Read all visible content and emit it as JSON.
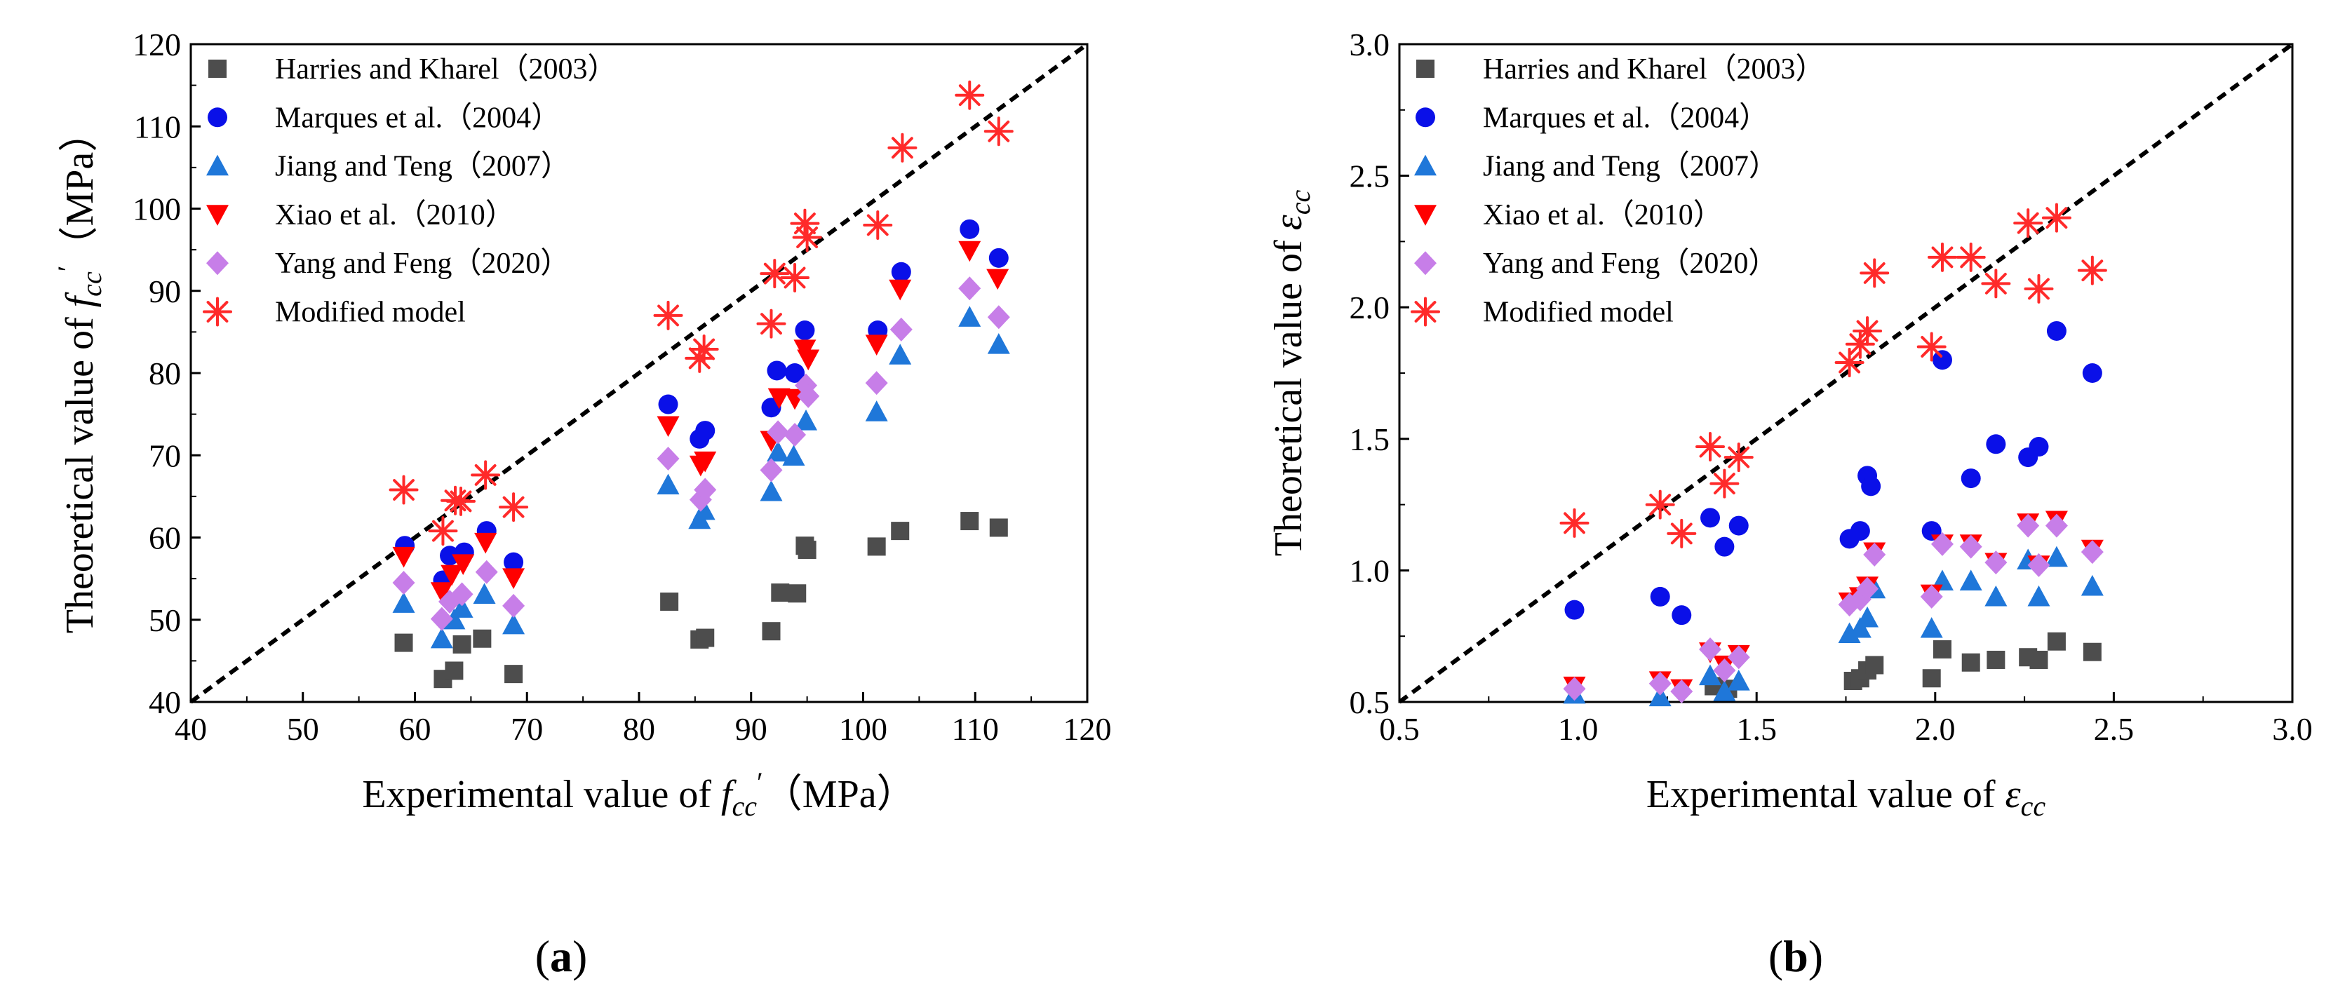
{
  "colors": {
    "harries": "#4d4d4d",
    "marques": "#0a10e8",
    "jiang": "#1f77d9",
    "xiao": "#ff0000",
    "yang": "#c77ee8",
    "modified": "#ff2a2a",
    "axis": "#000000"
  },
  "chart_data": [
    {
      "type": "scatter",
      "panel_label": "(a)",
      "xlabel": {
        "prefix": "Experimental value of ",
        "sym": "f",
        "sub": "cc",
        "prime": "′",
        "unit": "（MPa）"
      },
      "ylabel": {
        "prefix": "Theoretical value of ",
        "sym": "f",
        "sub": "cc",
        "prime": "′",
        "unit": "（MPa）"
      },
      "xlim": [
        40,
        120
      ],
      "ylim": [
        40,
        120
      ],
      "xticks": [
        "40",
        "50",
        "60",
        "70",
        "80",
        "90",
        "100",
        "110",
        "120"
      ],
      "yticks": [
        "40",
        "50",
        "60",
        "70",
        "80",
        "90",
        "100",
        "110",
        "120"
      ],
      "reference_line": "y = x",
      "legend_position": "top-left",
      "series": [
        {
          "name": "Harries and Kharel（2003）",
          "marker": "square",
          "color": "harries",
          "points": [
            [
              59,
              47.2
            ],
            [
              62.5,
              42.8
            ],
            [
              63.5,
              43.8
            ],
            [
              64.2,
              47
            ],
            [
              66,
              47.7
            ],
            [
              68.8,
              43.4
            ],
            [
              82.7,
              52.2
            ],
            [
              85.4,
              47.6
            ],
            [
              85.9,
              47.8
            ],
            [
              91.8,
              48.6
            ],
            [
              92.6,
              53.3
            ],
            [
              94.1,
              53.2
            ],
            [
              94.8,
              59
            ],
            [
              95,
              58.5
            ],
            [
              101.2,
              58.9
            ],
            [
              103.3,
              60.8
            ],
            [
              109.5,
              62
            ],
            [
              112.1,
              61.2
            ]
          ]
        },
        {
          "name": "Marques et al.（2004）",
          "marker": "circle",
          "color": "marques",
          "points": [
            [
              59.1,
              59
            ],
            [
              62.5,
              54.8
            ],
            [
              63.1,
              57.8
            ],
            [
              64.4,
              58.2
            ],
            [
              66.4,
              60.8
            ],
            [
              68.8,
              57
            ],
            [
              82.6,
              76.2
            ],
            [
              85.4,
              72
            ],
            [
              85.9,
              73
            ],
            [
              91.8,
              75.8
            ],
            [
              92.3,
              80.3
            ],
            [
              93.9,
              80
            ],
            [
              94.8,
              85.2
            ],
            [
              101.3,
              85.2
            ],
            [
              103.4,
              92.3
            ],
            [
              109.5,
              97.5
            ],
            [
              112.1,
              94
            ]
          ]
        },
        {
          "name": "Jiang and Teng（2007）",
          "marker": "triangle-up",
          "color": "jiang",
          "points": [
            [
              59,
              52
            ],
            [
              62.4,
              47.7
            ],
            [
              63.5,
              50
            ],
            [
              64.2,
              51.4
            ],
            [
              66.2,
              53.1
            ],
            [
              68.8,
              49.4
            ],
            [
              82.6,
              66.4
            ],
            [
              85.4,
              62.2
            ],
            [
              85.8,
              63.3
            ],
            [
              91.8,
              65.6
            ],
            [
              92.4,
              70.4
            ],
            [
              93.8,
              69.9
            ],
            [
              94.9,
              74.2
            ],
            [
              101.2,
              75.3
            ],
            [
              103.3,
              82.2
            ],
            [
              109.5,
              86.8
            ],
            [
              112.1,
              83.5
            ]
          ]
        },
        {
          "name": "Xiao et al.（2010）",
          "marker": "triangle-down",
          "color": "xiao",
          "points": [
            [
              59,
              57.7
            ],
            [
              62.4,
              53.4
            ],
            [
              63.3,
              55.5
            ],
            [
              64.3,
              56.8
            ],
            [
              66.3,
              59.4
            ],
            [
              68.8,
              55.1
            ],
            [
              82.6,
              73.6
            ],
            [
              85.5,
              68.8
            ],
            [
              85.9,
              69.3
            ],
            [
              91.8,
              71.8
            ],
            [
              92.5,
              77
            ],
            [
              93.9,
              76.9
            ],
            [
              94.8,
              82.9
            ],
            [
              95.1,
              81.7
            ],
            [
              101.2,
              83.5
            ],
            [
              103.3,
              90.2
            ],
            [
              109.5,
              94.9
            ],
            [
              112,
              91.5
            ]
          ]
        },
        {
          "name": "Yang and Feng（2020）",
          "marker": "diamond",
          "color": "yang",
          "points": [
            [
              59,
              54.5
            ],
            [
              62.4,
              50.1
            ],
            [
              63.1,
              52.2
            ],
            [
              64.2,
              53.1
            ],
            [
              66.4,
              55.8
            ],
            [
              68.8,
              51.7
            ],
            [
              82.6,
              69.6
            ],
            [
              85.5,
              64.6
            ],
            [
              85.9,
              65.8
            ],
            [
              91.8,
              68.2
            ],
            [
              92.4,
              72.8
            ],
            [
              93.9,
              72.5
            ],
            [
              94.9,
              78.5
            ],
            [
              95.1,
              77.2
            ],
            [
              101.2,
              78.8
            ],
            [
              103.4,
              85.3
            ],
            [
              109.5,
              90.3
            ],
            [
              112.1,
              86.8
            ]
          ]
        },
        {
          "name": "Modified model",
          "marker": "asterisk",
          "color": "modified",
          "points": [
            [
              59,
              65.8
            ],
            [
              62.5,
              60.8
            ],
            [
              63.6,
              64.5
            ],
            [
              64.1,
              64.4
            ],
            [
              66.3,
              67.6
            ],
            [
              68.8,
              63.7
            ],
            [
              82.6,
              87
            ],
            [
              85.4,
              81.8
            ],
            [
              85.8,
              82.9
            ],
            [
              91.8,
              86
            ],
            [
              92.1,
              92.1
            ],
            [
              93.9,
              91.6
            ],
            [
              94.8,
              98.2
            ],
            [
              95,
              96.5
            ],
            [
              101.3,
              98
            ],
            [
              103.5,
              107.4
            ],
            [
              109.5,
              113.8
            ],
            [
              112.1,
              109.4
            ]
          ]
        }
      ]
    },
    {
      "type": "scatter",
      "panel_label": "(b)",
      "xlabel": {
        "prefix": "Experimental value of ",
        "sym": "ε",
        "sub": "cc",
        "prime": "",
        "unit": ""
      },
      "ylabel": {
        "prefix": "Theoretical value of ",
        "sym": "ε",
        "sub": "cc",
        "prime": "",
        "unit": ""
      },
      "xlim": [
        0.5,
        3.0
      ],
      "ylim": [
        0.5,
        3.0
      ],
      "xticks": [
        "0.5",
        "1.0",
        "1.5",
        "2.0",
        "2.5",
        "3.0"
      ],
      "yticks": [
        "0.5",
        "1.0",
        "1.5",
        "2.0",
        "2.5",
        "3.0"
      ],
      "reference_line": "y = x",
      "legend_position": "top-left",
      "series": [
        {
          "name": "Harries and Kharel（2003）",
          "marker": "square",
          "color": "harries",
          "points": [
            [
              1.38,
              0.56
            ],
            [
              1.42,
              0.55
            ],
            [
              1.77,
              0.58
            ],
            [
              1.79,
              0.59
            ],
            [
              1.81,
              0.62
            ],
            [
              1.83,
              0.64
            ],
            [
              1.99,
              0.59
            ],
            [
              2.02,
              0.7
            ],
            [
              2.1,
              0.65
            ],
            [
              2.17,
              0.66
            ],
            [
              2.26,
              0.67
            ],
            [
              2.29,
              0.66
            ],
            [
              2.34,
              0.73
            ],
            [
              2.44,
              0.69
            ]
          ]
        },
        {
          "name": "Marques et al.（2004）",
          "marker": "circle",
          "color": "marques",
          "points": [
            [
              0.99,
              0.85
            ],
            [
              1.23,
              0.9
            ],
            [
              1.29,
              0.83
            ],
            [
              1.37,
              1.2
            ],
            [
              1.41,
              1.09
            ],
            [
              1.45,
              1.17
            ],
            [
              1.76,
              1.12
            ],
            [
              1.79,
              1.15
            ],
            [
              1.81,
              1.36
            ],
            [
              1.82,
              1.32
            ],
            [
              1.99,
              1.15
            ],
            [
              2.02,
              1.8
            ],
            [
              2.1,
              1.35
            ],
            [
              2.17,
              1.48
            ],
            [
              2.26,
              1.43
            ],
            [
              2.29,
              1.47
            ],
            [
              2.34,
              1.91
            ],
            [
              2.44,
              1.75
            ]
          ]
        },
        {
          "name": "Jiang and Teng（2007）",
          "marker": "triangle-up",
          "color": "jiang",
          "points": [
            [
              0.99,
              0.53
            ],
            [
              1.23,
              0.52
            ],
            [
              1.37,
              0.6
            ],
            [
              1.41,
              0.54
            ],
            [
              1.45,
              0.58
            ],
            [
              1.76,
              0.76
            ],
            [
              1.79,
              0.78
            ],
            [
              1.81,
              0.82
            ],
            [
              1.83,
              0.93
            ],
            [
              1.99,
              0.78
            ],
            [
              2.02,
              0.96
            ],
            [
              2.1,
              0.96
            ],
            [
              2.17,
              0.9
            ],
            [
              2.26,
              1.04
            ],
            [
              2.29,
              0.9
            ],
            [
              2.34,
              1.05
            ],
            [
              2.44,
              0.94
            ]
          ]
        },
        {
          "name": "Xiao et al.（2010）",
          "marker": "triangle-down",
          "color": "xiao",
          "points": [
            [
              0.99,
              0.56
            ],
            [
              1.23,
              0.58
            ],
            [
              1.29,
              0.55
            ],
            [
              1.37,
              0.69
            ],
            [
              1.41,
              0.64
            ],
            [
              1.45,
              0.68
            ],
            [
              1.76,
              0.88
            ],
            [
              1.79,
              0.9
            ],
            [
              1.81,
              0.94
            ],
            [
              1.83,
              1.07
            ],
            [
              1.99,
              0.91
            ],
            [
              2.02,
              1.1
            ],
            [
              2.1,
              1.1
            ],
            [
              2.17,
              1.03
            ],
            [
              2.26,
              1.18
            ],
            [
              2.29,
              1.02
            ],
            [
              2.34,
              1.19
            ],
            [
              2.44,
              1.08
            ]
          ]
        },
        {
          "name": "Yang and Feng（2020）",
          "marker": "diamond",
          "color": "yang",
          "points": [
            [
              0.99,
              0.55
            ],
            [
              1.23,
              0.57
            ],
            [
              1.29,
              0.54
            ],
            [
              1.37,
              0.7
            ],
            [
              1.41,
              0.62
            ],
            [
              1.45,
              0.67
            ],
            [
              1.76,
              0.87
            ],
            [
              1.79,
              0.89
            ],
            [
              1.81,
              0.93
            ],
            [
              1.83,
              1.06
            ],
            [
              1.99,
              0.9
            ],
            [
              2.02,
              1.1
            ],
            [
              2.1,
              1.09
            ],
            [
              2.17,
              1.03
            ],
            [
              2.26,
              1.17
            ],
            [
              2.29,
              1.02
            ],
            [
              2.34,
              1.17
            ],
            [
              2.44,
              1.07
            ]
          ]
        },
        {
          "name": "Modified model",
          "marker": "asterisk",
          "color": "modified",
          "points": [
            [
              0.99,
              1.18
            ],
            [
              1.23,
              1.25
            ],
            [
              1.29,
              1.14
            ],
            [
              1.37,
              1.47
            ],
            [
              1.41,
              1.33
            ],
            [
              1.45,
              1.43
            ],
            [
              1.76,
              1.79
            ],
            [
              1.79,
              1.86
            ],
            [
              1.81,
              1.91
            ],
            [
              1.83,
              2.13
            ],
            [
              1.99,
              1.85
            ],
            [
              2.02,
              2.19
            ],
            [
              2.1,
              2.19
            ],
            [
              2.17,
              2.09
            ],
            [
              2.26,
              2.32
            ],
            [
              2.29,
              2.07
            ],
            [
              2.34,
              2.34
            ],
            [
              2.44,
              2.14
            ]
          ]
        }
      ]
    }
  ]
}
